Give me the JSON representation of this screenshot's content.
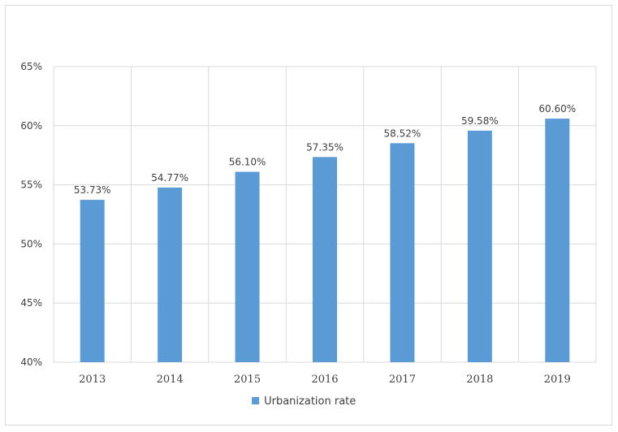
{
  "chart_data": {
    "type": "bar",
    "categories": [
      "2013",
      "2014",
      "2015",
      "2016",
      "2017",
      "2018",
      "2019"
    ],
    "series": [
      {
        "name": "Urbanization rate",
        "values": [
          53.73,
          54.77,
          56.1,
          57.35,
          58.52,
          59.58,
          60.6
        ],
        "data_labels": [
          "53.73%",
          "54.77%",
          "56.10%",
          "57.35%",
          "58.52%",
          "59.58%",
          "60.60%"
        ],
        "color": "#5b9bd5"
      }
    ],
    "y_ticks": [
      "40%",
      "45%",
      "50%",
      "55%",
      "60%",
      "65%"
    ],
    "ylim": [
      40,
      65
    ],
    "grid": true,
    "legend_position": "bottom",
    "colors": {
      "gridline": "#d9d9d9",
      "text": "#404040"
    }
  }
}
